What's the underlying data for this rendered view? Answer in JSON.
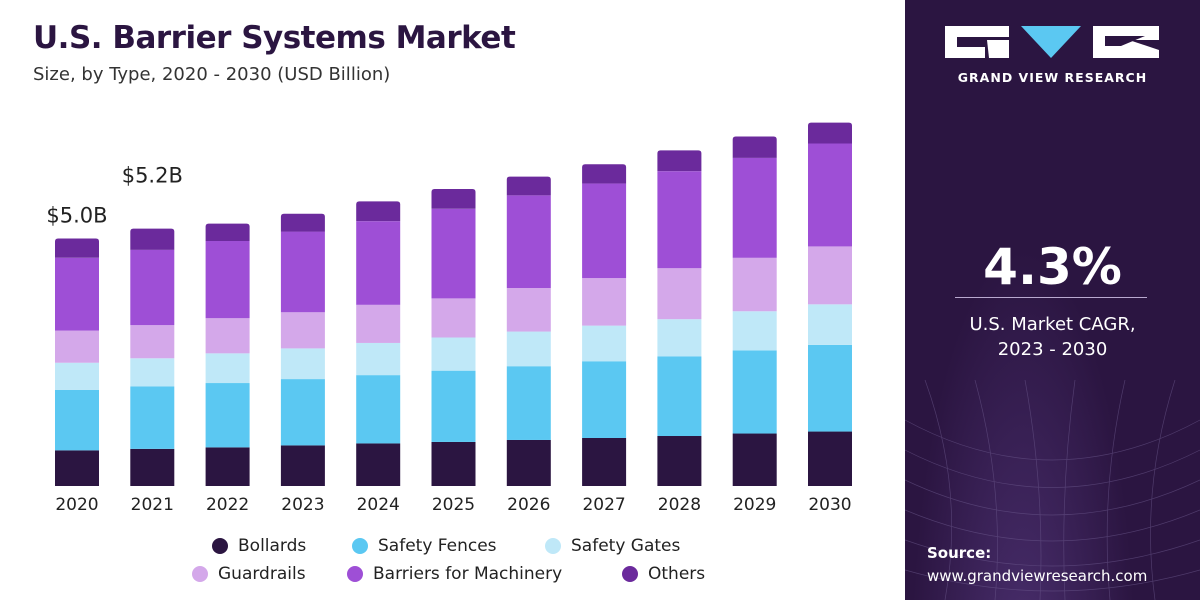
{
  "header": {
    "title": "U.S. Barrier Systems Market",
    "subtitle": "Size, by Type, 2020 - 2030 (USD Billion)"
  },
  "chart_data": {
    "type": "bar",
    "stacked": true,
    "title": "U.S. Barrier Systems Market",
    "subtitle": "Size, by Type, 2020 - 2030 (USD Billion)",
    "xlabel": "",
    "ylabel": "",
    "ylim": [
      0,
      8
    ],
    "grid": false,
    "legend_position": "bottom",
    "categories": [
      "2020",
      "2021",
      "2022",
      "2023",
      "2024",
      "2025",
      "2026",
      "2027",
      "2028",
      "2029",
      "2030"
    ],
    "series": [
      {
        "name": "Bollards",
        "color": "#2b1541",
        "values": [
          0.72,
          0.75,
          0.78,
          0.82,
          0.86,
          0.89,
          0.93,
          0.97,
          1.01,
          1.06,
          1.1
        ]
      },
      {
        "name": "Safety Fences",
        "color": "#5bc8f2",
        "values": [
          1.22,
          1.26,
          1.3,
          1.34,
          1.38,
          1.44,
          1.49,
          1.55,
          1.61,
          1.68,
          1.75
        ]
      },
      {
        "name": "Safety Gates",
        "color": "#bfe8f8",
        "values": [
          0.55,
          0.57,
          0.6,
          0.62,
          0.65,
          0.67,
          0.7,
          0.72,
          0.75,
          0.79,
          0.82
        ]
      },
      {
        "name": "Guardrails",
        "color": "#d4a8ea",
        "values": [
          0.65,
          0.67,
          0.71,
          0.73,
          0.77,
          0.79,
          0.88,
          0.96,
          1.03,
          1.08,
          1.17
        ]
      },
      {
        "name": "Barriers for Machinery",
        "color": "#9e4fd6",
        "values": [
          1.47,
          1.52,
          1.56,
          1.63,
          1.69,
          1.81,
          1.87,
          1.91,
          1.96,
          2.02,
          2.08
        ]
      },
      {
        "name": "Others",
        "color": "#6b2a9c",
        "values": [
          0.39,
          0.43,
          0.35,
          0.36,
          0.4,
          0.4,
          0.38,
          0.39,
          0.42,
          0.43,
          0.42
        ]
      }
    ],
    "data_labels": [
      {
        "category": "2020",
        "text": "$5.0B"
      },
      {
        "category": "2021",
        "text": "$5.2B"
      }
    ]
  },
  "side_panel": {
    "brand_name": "GRAND VIEW RESEARCH",
    "cagr_value": "4.3%",
    "cagr_label_line1": "U.S. Market CAGR,",
    "cagr_label_line2": "2023 - 2030",
    "source_title": "Source:",
    "source_url": "www.grandviewresearch.com"
  },
  "colors": {
    "panel_background": "#2b1541",
    "title_color": "#2b1541"
  }
}
